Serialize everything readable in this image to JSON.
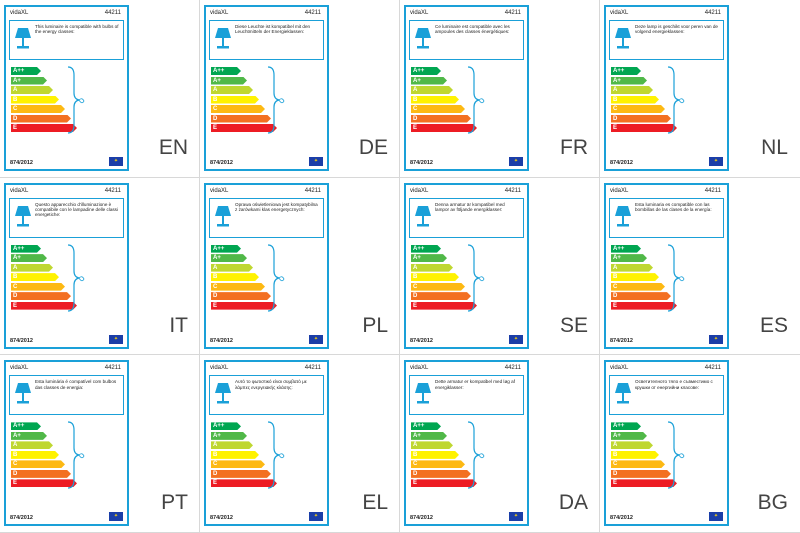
{
  "brand": "vidaXL",
  "code": "44211",
  "regulation": "874/2012",
  "icons": {
    "lamp": "lamp-icon",
    "eu_flag": "eu-flag-icon"
  },
  "bars": [
    {
      "label": "A++",
      "color": "#00a651"
    },
    {
      "label": "A+",
      "color": "#50b848"
    },
    {
      "label": "A",
      "color": "#bfd730"
    },
    {
      "label": "B",
      "color": "#fff200"
    },
    {
      "label": "C",
      "color": "#fdb913"
    },
    {
      "label": "D",
      "color": "#f37021"
    },
    {
      "label": "E",
      "color": "#ed1c24"
    }
  ],
  "labels": [
    {
      "lang": "EN",
      "text": "This luminaire is compatible with bulbs of the energy classes:"
    },
    {
      "lang": "DE",
      "text": "Diese Leuchte ist kompatibel mit den Leuchtmitteln der Energieklassen:"
    },
    {
      "lang": "FR",
      "text": "Ce luminaire est compatible avec les ampoules des classes énergétiques:"
    },
    {
      "lang": "NL",
      "text": "Deze lamp is geschikt voor peren van de volgend energieklassen:"
    },
    {
      "lang": "IT",
      "text": "Questo apparecchio d'illuminazione è compatibile con le lampadine delle classi energetiche:"
    },
    {
      "lang": "PL",
      "text": "Oprawa oświetleniowa jest kompatybilna z żarówkami klas energetycznych:"
    },
    {
      "lang": "SE",
      "text": "Denna armatur är kompatibel med lampor av följande energiklasser:"
    },
    {
      "lang": "ES",
      "text": "Esta luminaria es compatible con las bombillas de las clases de la energía:"
    },
    {
      "lang": "PT",
      "text": "Esta luminária é compatível com bulbos das classes de energia:"
    },
    {
      "lang": "EL",
      "text": "Αυτό το φωτιστικό είναι συμβατό με λάμπες ενεργειακής κλάσης:"
    },
    {
      "lang": "DA",
      "text": "Dette armatur er kompatibel med løg af energiklasser:"
    },
    {
      "lang": "BG",
      "text": "Осветителното тяло е съвместимо с крушки от енергийни класове:"
    }
  ]
}
